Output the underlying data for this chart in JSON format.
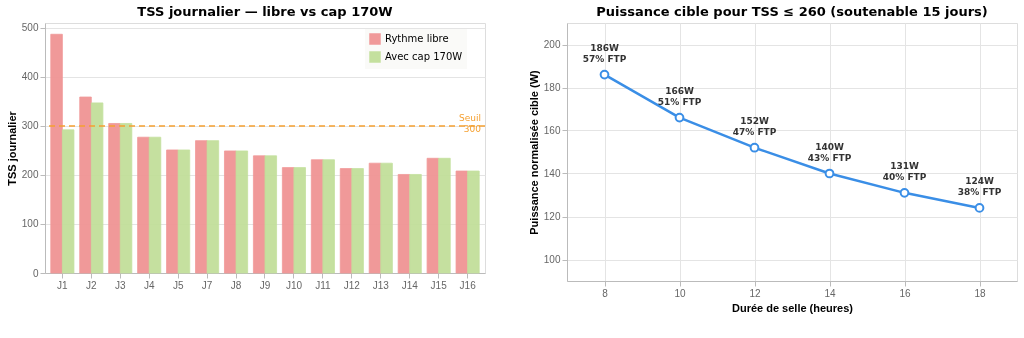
{
  "chart_data": [
    {
      "type": "bar",
      "title": "TSS journalier — libre vs cap 170W",
      "ylabel": "TSS journalier",
      "categories": [
        "J1",
        "J2",
        "J3",
        "J4",
        "J5",
        "J7",
        "J8",
        "J9",
        "J10",
        "J11",
        "J12",
        "J13",
        "J14",
        "J15",
        "J16"
      ],
      "series": [
        {
          "name": "Rythme libre",
          "color": "#f09494",
          "values": [
            487,
            359,
            305,
            277,
            251,
            270,
            249,
            239,
            215,
            231,
            213,
            224,
            201,
            234,
            208
          ]
        },
        {
          "name": "Avec cap 170W",
          "color": "#c2df9a",
          "values": [
            292,
            347,
            305,
            277,
            251,
            270,
            249,
            239,
            215,
            231,
            213,
            224,
            201,
            234,
            208
          ]
        }
      ],
      "ylim": [
        0,
        510
      ],
      "yticks": [
        0,
        100,
        200,
        300,
        400,
        500
      ],
      "grid": "y",
      "legend": "top right",
      "ref_lines": [
        {
          "axis": "y",
          "value": 300,
          "label": "Seuil\n300",
          "color": "#f5a030",
          "line_style": "dashed"
        }
      ]
    },
    {
      "type": "line",
      "title": "Puissance cible pour TSS ≤ 260 (soutenable 15 jours)",
      "xlabel": "Durée de selle (heures)",
      "ylabel": "Puissance normalisée cible (W)",
      "x": [
        8,
        10,
        12,
        14,
        16,
        18
      ],
      "series": [
        {
          "color": "#3a8ee6",
          "values": [
            186,
            166,
            152,
            140,
            131,
            124
          ],
          "value_labels": [
            "186W\n57% FTP",
            "166W\n51% FTP",
            "152W\n47% FTP",
            "140W\n43% FTP",
            "131W\n40% FTP",
            "124W\n38% FTP"
          ]
        }
      ],
      "xlim": [
        7,
        19
      ],
      "xticks": [
        8,
        10,
        12,
        14,
        16,
        18
      ],
      "ylim": [
        90,
        210
      ],
      "yticks": [
        100,
        120,
        140,
        160,
        180,
        200
      ],
      "grid": true,
      "marker": "circle",
      "line_style": "solid",
      "legend": false
    }
  ]
}
